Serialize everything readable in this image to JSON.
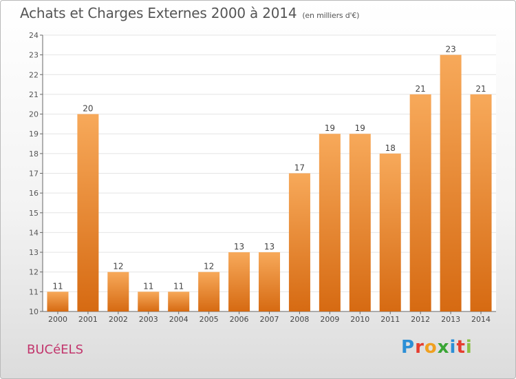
{
  "title": "Achats et Charges Externes 2000 à 2014",
  "subtitle": "(en milliers d'€)",
  "place": "BUCéELS",
  "logo": {
    "text": "Proxiti",
    "colors": [
      "#2c8fd6",
      "#e63d2f",
      "#f0a020",
      "#3aa535",
      "#2c8fd6",
      "#e63d2f",
      "#8ac043"
    ]
  },
  "colors": {
    "bar_top": "#f7a95a",
    "bar_bottom": "#d66a12",
    "axis": "#666666",
    "grid": "#e4e4e4"
  },
  "chart_data": {
    "type": "bar",
    "categories": [
      "2000",
      "2001",
      "2002",
      "2003",
      "2004",
      "2005",
      "2006",
      "2007",
      "2008",
      "2009",
      "2010",
      "2011",
      "2012",
      "2013",
      "2014"
    ],
    "values": [
      11,
      20,
      12,
      11,
      11,
      12,
      13,
      13,
      17,
      19,
      19,
      18,
      21,
      23,
      21
    ],
    "ylim": [
      10,
      24
    ],
    "yticks": [
      10,
      11,
      12,
      13,
      14,
      15,
      16,
      17,
      18,
      19,
      20,
      21,
      22,
      23,
      24
    ],
    "grid": true,
    "data_labels": true
  }
}
